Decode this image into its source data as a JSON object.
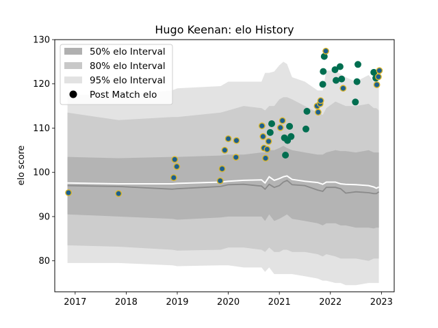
{
  "chart_data": {
    "type": "line",
    "title": "Hugo Keenan: elo History",
    "xlabel": "",
    "ylabel": "elo score",
    "xlim": [
      2016.6,
      2023.25
    ],
    "ylim": [
      73,
      130
    ],
    "x_ticks": [
      2017,
      2018,
      2019,
      2020,
      2021,
      2022,
      2023
    ],
    "y_ticks": [
      80,
      90,
      100,
      110,
      120,
      130
    ],
    "legend_position": "top-left",
    "legend": [
      {
        "label": "50% elo Interval",
        "kind": "band",
        "color": "#b0b0b0"
      },
      {
        "label": "80% elo Interval",
        "kind": "band",
        "color": "#c8c8c8"
      },
      {
        "label": "95% elo Interval",
        "kind": "band",
        "color": "#e2e2e2"
      },
      {
        "label": "Post Match elo",
        "kind": "marker",
        "color": "#000000"
      }
    ],
    "colors": {
      "band50": "#b4b4b4",
      "band80": "#cdcdcd",
      "band95": "#e3e3e3",
      "median_line": "#8a8a8a",
      "mean_line": "#ffffff",
      "dot_fill": "#006e50",
      "dot_edge_gold": "#d8b52a",
      "dot_fill_blue": "#1c5f8e"
    },
    "bands": {
      "x": [
        2016.85,
        2017.85,
        2018.9,
        2019.0,
        2019.85,
        2020.0,
        2020.3,
        2020.65,
        2020.72,
        2020.8,
        2020.9,
        2021.0,
        2021.08,
        2021.15,
        2021.25,
        2021.5,
        2021.75,
        2021.85,
        2021.92,
        2022.1,
        2022.2,
        2022.3,
        2022.5,
        2022.75,
        2022.85,
        2022.9,
        2022.95
      ],
      "p95_hi": [
        117.5,
        117.5,
        118.5,
        119.0,
        119.5,
        120.5,
        120.5,
        120.5,
        122.5,
        122.5,
        122.8,
        124.2,
        125.0,
        124.5,
        121.5,
        120.5,
        118.5,
        118.5,
        123.0,
        123.0,
        122.2,
        121.5,
        120.5,
        122.0,
        120.5,
        121.0,
        120.5
      ],
      "p80_hi": [
        113.5,
        111.8,
        112.5,
        112.5,
        113.5,
        114.0,
        115.0,
        114.5,
        114.0,
        115.0,
        115.0,
        116.5,
        117.0,
        117.0,
        116.5,
        115.0,
        113.5,
        113.0,
        114.5,
        116.0,
        115.5,
        115.0,
        115.0,
        115.5,
        114.5,
        114.5,
        114.0
      ],
      "p50_hi": [
        103.5,
        103.2,
        103.5,
        103.5,
        103.8,
        104.0,
        104.0,
        104.5,
        104.5,
        105.0,
        105.0,
        105.5,
        106.0,
        105.5,
        105.0,
        104.5,
        104.0,
        104.0,
        104.5,
        105.0,
        104.8,
        104.8,
        104.5,
        105.0,
        104.5,
        104.5,
        104.5
      ],
      "mean": [
        97.6,
        97.4,
        97.4,
        97.5,
        97.8,
        98.0,
        98.2,
        98.3,
        97.6,
        99.0,
        98.2,
        98.6,
        99.0,
        99.2,
        98.4,
        98.0,
        97.7,
        97.3,
        97.8,
        97.8,
        97.4,
        97.3,
        97.2,
        97.0,
        96.7,
        96.4,
        96.7
      ],
      "median": [
        97.0,
        96.8,
        96.2,
        96.3,
        96.8,
        97.2,
        97.3,
        96.9,
        96.2,
        97.3,
        96.6,
        97.0,
        97.8,
        98.2,
        97.2,
        97.0,
        96.0,
        95.7,
        96.6,
        96.6,
        96.3,
        95.3,
        95.6,
        95.4,
        95.2,
        95.2,
        95.6
      ],
      "p50_lo": [
        90.5,
        90.0,
        89.5,
        89.3,
        89.8,
        90.0,
        90.0,
        90.0,
        89.0,
        90.5,
        89.0,
        89.5,
        90.0,
        90.5,
        89.5,
        89.0,
        88.5,
        88.0,
        88.5,
        88.5,
        88.0,
        88.0,
        87.5,
        87.5,
        87.3,
        87.5,
        87.5
      ],
      "p80_lo": [
        83.5,
        83.2,
        82.5,
        82.3,
        82.5,
        83.0,
        83.0,
        82.5,
        82.0,
        83.0,
        82.0,
        82.0,
        82.5,
        82.5,
        82.0,
        82.0,
        81.5,
        81.0,
        81.5,
        81.0,
        80.5,
        80.5,
        80.5,
        80.0,
        80.5,
        80.5,
        80.5
      ],
      "p95_lo": [
        79.5,
        79.5,
        79.0,
        78.8,
        79.0,
        79.0,
        78.5,
        78.5,
        77.5,
        78.5,
        77.0,
        77.0,
        77.0,
        77.0,
        77.0,
        76.5,
        76.0,
        75.5,
        75.5,
        75.0,
        75.0,
        74.5,
        74.5,
        75.0,
        75.0,
        75.0,
        75.0
      ]
    },
    "points": [
      {
        "x": 2016.87,
        "y": 95.4,
        "style": "blue"
      },
      {
        "x": 2017.85,
        "y": 95.2,
        "style": "blue"
      },
      {
        "x": 2018.93,
        "y": 98.8,
        "style": "blue"
      },
      {
        "x": 2018.95,
        "y": 102.9,
        "style": "blue"
      },
      {
        "x": 2018.99,
        "y": 101.3,
        "style": "blue"
      },
      {
        "x": 2019.84,
        "y": 98.1,
        "style": "blue"
      },
      {
        "x": 2019.88,
        "y": 100.8,
        "style": "blue"
      },
      {
        "x": 2019.93,
        "y": 105.0,
        "style": "blue"
      },
      {
        "x": 2020.0,
        "y": 107.6,
        "style": "blue"
      },
      {
        "x": 2020.15,
        "y": 103.4,
        "style": "blue"
      },
      {
        "x": 2020.16,
        "y": 107.2,
        "style": "blue"
      },
      {
        "x": 2020.66,
        "y": 110.5,
        "style": "blue"
      },
      {
        "x": 2020.68,
        "y": 108.1,
        "style": "blue"
      },
      {
        "x": 2020.7,
        "y": 105.5,
        "style": "blue"
      },
      {
        "x": 2020.73,
        "y": 103.2,
        "style": "blue"
      },
      {
        "x": 2020.76,
        "y": 105.2,
        "style": "blue"
      },
      {
        "x": 2020.79,
        "y": 107.0,
        "style": "blue"
      },
      {
        "x": 2020.82,
        "y": 109.0,
        "style": "green"
      },
      {
        "x": 2020.85,
        "y": 111.0,
        "style": "green"
      },
      {
        "x": 2021.02,
        "y": 110.1,
        "style": "blue"
      },
      {
        "x": 2021.06,
        "y": 111.7,
        "style": "blue"
      },
      {
        "x": 2021.1,
        "y": 107.8,
        "style": "green"
      },
      {
        "x": 2021.12,
        "y": 103.9,
        "style": "green"
      },
      {
        "x": 2021.16,
        "y": 107.2,
        "style": "green"
      },
      {
        "x": 2021.2,
        "y": 110.4,
        "style": "green"
      },
      {
        "x": 2021.23,
        "y": 108.1,
        "style": "green"
      },
      {
        "x": 2021.52,
        "y": 109.8,
        "style": "green"
      },
      {
        "x": 2021.54,
        "y": 113.8,
        "style": "green"
      },
      {
        "x": 2021.74,
        "y": 115.0,
        "style": "blue"
      },
      {
        "x": 2021.76,
        "y": 113.6,
        "style": "blue"
      },
      {
        "x": 2021.8,
        "y": 115.5,
        "style": "blue"
      },
      {
        "x": 2021.81,
        "y": 116.2,
        "style": "blue"
      },
      {
        "x": 2021.85,
        "y": 119.9,
        "style": "green"
      },
      {
        "x": 2021.86,
        "y": 122.8,
        "style": "green"
      },
      {
        "x": 2021.88,
        "y": 126.2,
        "style": "green"
      },
      {
        "x": 2021.91,
        "y": 127.4,
        "style": "blue"
      },
      {
        "x": 2022.09,
        "y": 123.2,
        "style": "green"
      },
      {
        "x": 2022.11,
        "y": 120.8,
        "style": "green"
      },
      {
        "x": 2022.19,
        "y": 123.9,
        "style": "green"
      },
      {
        "x": 2022.22,
        "y": 121.1,
        "style": "green"
      },
      {
        "x": 2022.25,
        "y": 119.0,
        "style": "blue"
      },
      {
        "x": 2022.49,
        "y": 115.9,
        "style": "green"
      },
      {
        "x": 2022.52,
        "y": 120.5,
        "style": "green"
      },
      {
        "x": 2022.54,
        "y": 124.4,
        "style": "green"
      },
      {
        "x": 2022.85,
        "y": 122.6,
        "style": "green"
      },
      {
        "x": 2022.89,
        "y": 121.3,
        "style": "green"
      },
      {
        "x": 2022.91,
        "y": 119.8,
        "style": "blue"
      },
      {
        "x": 2022.94,
        "y": 121.6,
        "style": "blue"
      },
      {
        "x": 2022.96,
        "y": 123.0,
        "style": "blue"
      }
    ]
  }
}
